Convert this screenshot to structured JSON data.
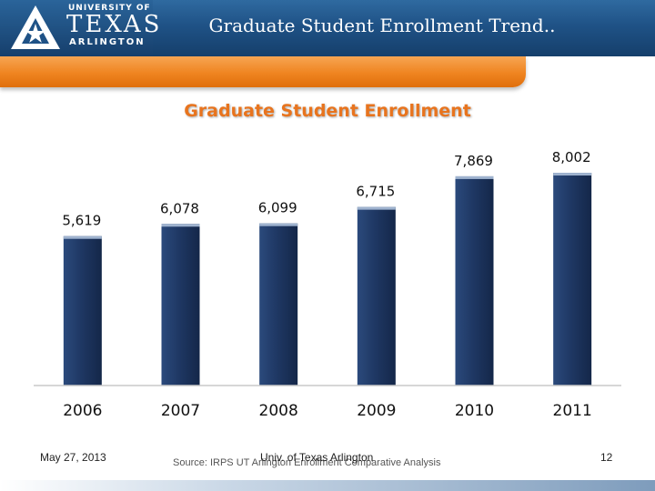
{
  "header": {
    "logo": {
      "line1": "UNIVERSITY OF",
      "line2": "TEXAS",
      "line3": "ARLINGTON"
    },
    "slide_title": "Graduate Student Enrollment Trend..",
    "colors": {
      "header_blue": "#1f5286",
      "orange": "#ef8420"
    }
  },
  "chart_data": {
    "type": "bar",
    "title": "Graduate Student Enrollment",
    "categories": [
      "2006",
      "2007",
      "2008",
      "2009",
      "2010",
      "2011"
    ],
    "values": [
      5619,
      6078,
      6099,
      6715,
      7869,
      8002
    ],
    "value_labels": [
      "5,619",
      "6,078",
      "6,099",
      "6,715",
      "7,869",
      "8,002"
    ],
    "ylim": [
      0,
      8550
    ],
    "bar_color": "#1f3864",
    "grid": false,
    "legend": "none"
  },
  "footer": {
    "date": "May 27, 2013",
    "source": "Source:  IRPS UT Arlington Enrollment Comparative Analysis",
    "institution": "Univ. of Texas Arlington",
    "page": "12"
  }
}
